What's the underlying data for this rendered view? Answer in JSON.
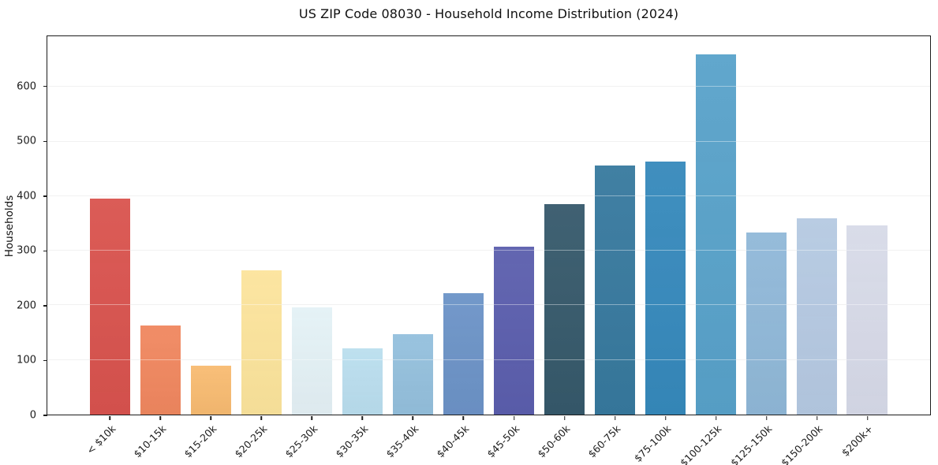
{
  "chart_data": {
    "type": "bar",
    "title": "US ZIP Code 08030 - Household Income Distribution (2024)",
    "xlabel": "",
    "ylabel": "Households",
    "categories": [
      "< $10k",
      "$10-15k",
      "$15-20k",
      "$20-25k",
      "$25-30k",
      "$30-35k",
      "$35-40k",
      "$40-45k",
      "$45-50k",
      "$50-60k",
      "$60-75k",
      "$75-100k",
      "$100-125k",
      "$125-150k",
      "$150-200k",
      "$200k+"
    ],
    "values": [
      395,
      163,
      90,
      264,
      196,
      121,
      147,
      222,
      307,
      386,
      456,
      463,
      660,
      333,
      360,
      347
    ],
    "bar_colors": [
      "#d9534e",
      "#f0875f",
      "#f8bb71",
      "#fce49c",
      "#e4f1f6",
      "#badeee",
      "#94c0dd",
      "#6c93c7",
      "#5b5ead",
      "#36596b",
      "#37799e",
      "#3689bc",
      "#58a2ca",
      "#90b8d8",
      "#b5c9e2",
      "#d7dae8"
    ],
    "yticks": [
      0,
      100,
      200,
      300,
      400,
      500,
      600
    ],
    "ylim": [
      0,
      693
    ],
    "grid": true,
    "grid_color": "#e8e8e8",
    "axis_color": "#1c1c1c",
    "background": "#ffffff",
    "legend_position": "none"
  }
}
